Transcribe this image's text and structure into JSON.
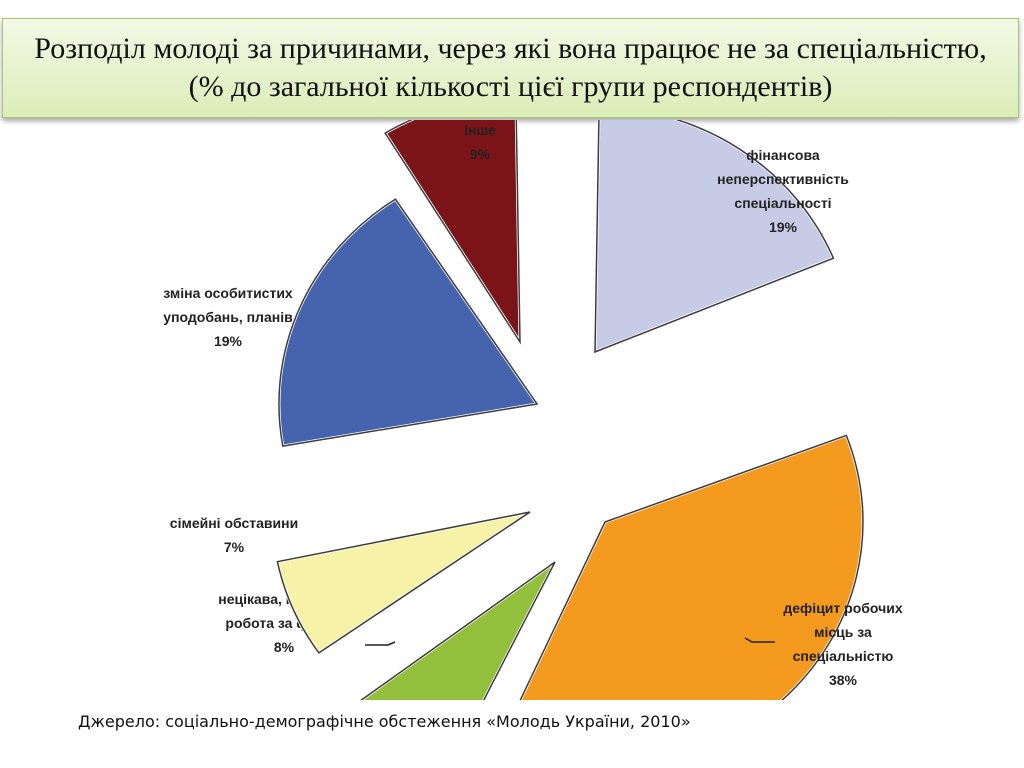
{
  "title": "Розподіл молоді за причинами, через які вона працює не за спеціальністю, (% до загальної кількості цієї групи респондентів)",
  "source": "Джерело: соціально-демографічне обстеження «Молодь України, 2010»",
  "chart_data": {
    "type": "pie",
    "title": "Розподіл молоді за причинами, через які вона працює не за спеціальністю, (% до загальної кількості цієї групи респондентів)",
    "slices": [
      {
        "label_lines": [
          "фінансова",
          "неперспективність",
          "спеціальності"
        ],
        "value_label": "19%",
        "value": 19,
        "color": "#c8cbe6"
      },
      {
        "label_lines": [
          "дефіцит робочих",
          "місць за",
          "спеціальністю"
        ],
        "value_label": "38%",
        "value": 38,
        "color": "#f39a1f"
      },
      {
        "label_lines": [
          "нецікава, нетворча",
          "робота за фахом"
        ],
        "value_label": "8%",
        "value": 8,
        "color": "#92c03d"
      },
      {
        "label_lines": [
          "сімейні обставини"
        ],
        "value_label": "7%",
        "value": 7,
        "color": "#f6f3a8"
      },
      {
        "label_lines": [
          "зміна особитистих",
          "уподобань, планів"
        ],
        "value_label": "19%",
        "value": 19,
        "color": "#4663ae"
      },
      {
        "label_lines": [
          "інше"
        ],
        "value_label": "9%",
        "value": 9,
        "color": "#7b1419"
      }
    ]
  }
}
